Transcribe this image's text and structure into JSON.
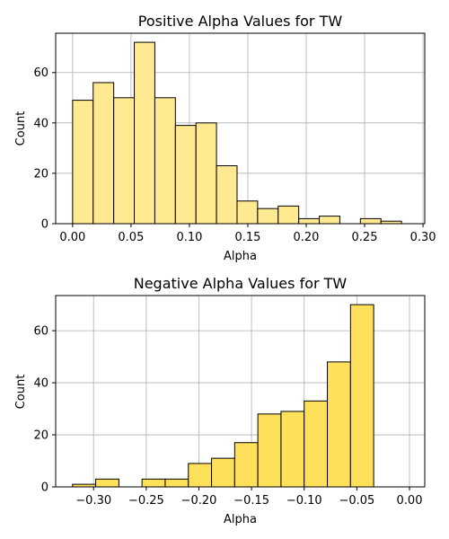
{
  "chart_data": [
    {
      "type": "bar",
      "title": "Positive Alpha Values for TW",
      "xlabel": "Alpha",
      "ylabel": "Count",
      "xlim": [
        -0.0145,
        0.3015
      ],
      "ylim": [
        0,
        75.6
      ],
      "xticks": [
        0.0,
        0.05,
        0.1,
        0.15,
        0.2,
        0.25,
        0.3
      ],
      "xtick_labels": [
        "0.00",
        "0.05",
        "0.10",
        "0.15",
        "0.20",
        "0.25",
        "0.30"
      ],
      "yticks": [
        0,
        20,
        40,
        60
      ],
      "ytick_labels": [
        "0",
        "20",
        "40",
        "60"
      ],
      "grid": true,
      "color": "#ffe991",
      "edgecolor": "#000000",
      "bins": [
        {
          "x0": 0.0,
          "x1": 0.0176,
          "count": 49
        },
        {
          "x0": 0.0176,
          "x1": 0.0352,
          "count": 56
        },
        {
          "x0": 0.0352,
          "x1": 0.0528,
          "count": 50
        },
        {
          "x0": 0.0528,
          "x1": 0.0704,
          "count": 72
        },
        {
          "x0": 0.0704,
          "x1": 0.088,
          "count": 50
        },
        {
          "x0": 0.088,
          "x1": 0.1056,
          "count": 39
        },
        {
          "x0": 0.1056,
          "x1": 0.1232,
          "count": 40
        },
        {
          "x0": 0.1232,
          "x1": 0.1408,
          "count": 23
        },
        {
          "x0": 0.1408,
          "x1": 0.1584,
          "count": 9
        },
        {
          "x0": 0.1584,
          "x1": 0.176,
          "count": 6
        },
        {
          "x0": 0.176,
          "x1": 0.1936,
          "count": 7
        },
        {
          "x0": 0.1936,
          "x1": 0.2112,
          "count": 2
        },
        {
          "x0": 0.2112,
          "x1": 0.2288,
          "count": 3
        },
        {
          "x0": 0.2288,
          "x1": 0.2464,
          "count": 0
        },
        {
          "x0": 0.2464,
          "x1": 0.264,
          "count": 2
        },
        {
          "x0": 0.264,
          "x1": 0.2816,
          "count": 1
        }
      ]
    },
    {
      "type": "bar",
      "title": "Negative Alpha Values for TW",
      "xlabel": "Alpha",
      "ylabel": "Count",
      "xlim": [
        -0.336,
        0.0145
      ],
      "ylim": [
        0,
        73.5
      ],
      "xticks": [
        -0.3,
        -0.25,
        -0.2,
        -0.15,
        -0.1,
        -0.05,
        0.0
      ],
      "xtick_labels": [
        "−0.30",
        "−0.25",
        "−0.20",
        "−0.15",
        "−0.10",
        "−0.05",
        "0.00"
      ],
      "yticks": [
        0,
        20,
        40,
        60
      ],
      "ytick_labels": [
        "0",
        "20",
        "40",
        "60"
      ],
      "grid": true,
      "color": "#ffe05a",
      "edgecolor": "#000000",
      "bins": [
        {
          "x0": -0.32,
          "x1": -0.298,
          "count": 1
        },
        {
          "x0": -0.298,
          "x1": -0.276,
          "count": 3
        },
        {
          "x0": -0.276,
          "x1": -0.254,
          "count": 0
        },
        {
          "x0": -0.254,
          "x1": -0.232,
          "count": 3
        },
        {
          "x0": -0.232,
          "x1": -0.21,
          "count": 3
        },
        {
          "x0": -0.21,
          "x1": -0.188,
          "count": 9
        },
        {
          "x0": -0.188,
          "x1": -0.166,
          "count": 11
        },
        {
          "x0": -0.166,
          "x1": -0.144,
          "count": 17
        },
        {
          "x0": -0.144,
          "x1": -0.122,
          "count": 28
        },
        {
          "x0": -0.122,
          "x1": -0.1,
          "count": 29
        },
        {
          "x0": -0.1,
          "x1": -0.078,
          "count": 33
        },
        {
          "x0": -0.078,
          "x1": -0.056,
          "count": 48
        },
        {
          "x0": -0.056,
          "x1": -0.034,
          "count": 70
        }
      ]
    }
  ]
}
